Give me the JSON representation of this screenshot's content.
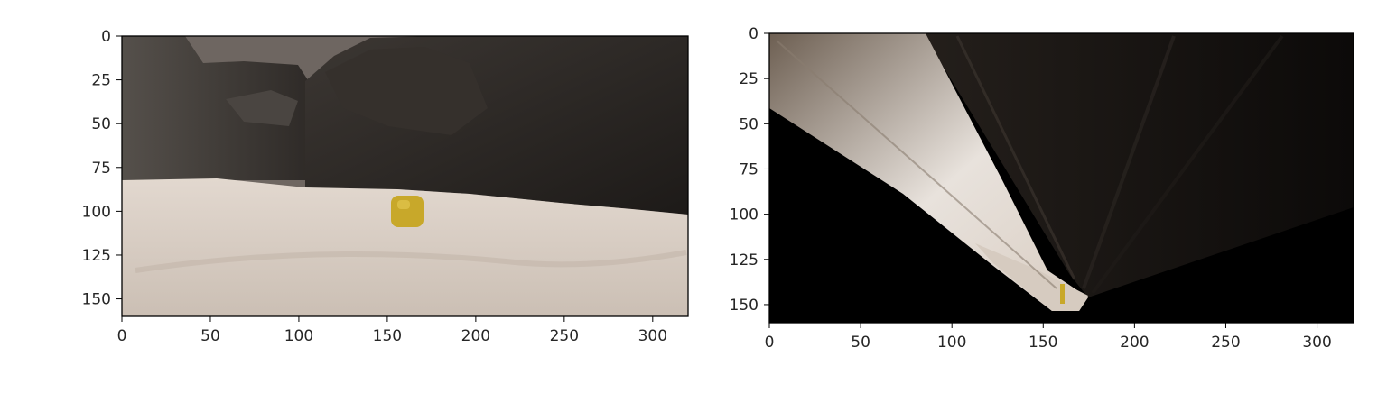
{
  "chart_data": [
    {
      "type": "image",
      "title": "",
      "xlabel": "",
      "ylabel": "",
      "xlim": [
        0,
        320
      ],
      "ylim": [
        160,
        0
      ],
      "xticks": [
        0,
        50,
        100,
        150,
        200,
        250,
        300
      ],
      "yticks": [
        0,
        25,
        50,
        75,
        100,
        125,
        150
      ],
      "grid": false
    },
    {
      "type": "image",
      "title": "",
      "xlabel": "",
      "ylabel": "",
      "xlim": [
        0,
        320
      ],
      "ylim": [
        160,
        0
      ],
      "xticks": [
        0,
        50,
        100,
        150,
        200,
        250,
        300
      ],
      "yticks": [
        0,
        25,
        50,
        75,
        100,
        125,
        150
      ],
      "grid": false
    }
  ],
  "colors": {
    "ground": "#d6cbc0",
    "rock": "#2a2623",
    "sky": "#6e6661",
    "sample": "#c8a82a",
    "warp_background": "#000000"
  }
}
